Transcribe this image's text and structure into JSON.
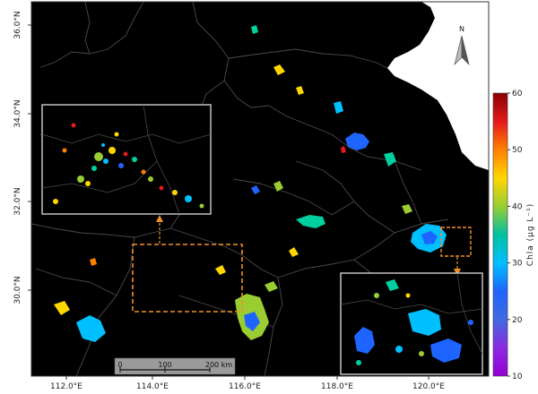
{
  "map": {
    "longitude_labels": [
      "112.0°E",
      "114.0°E",
      "116.0°E",
      "118.0°E",
      "120.0°E"
    ],
    "latitude_labels": [
      "36.0°N",
      "34.0°N",
      "32.0°N",
      "30.0°N"
    ],
    "north_arrow_label": "N",
    "scale_bar": {
      "labels": [
        "0",
        "100",
        "200 km"
      ]
    },
    "colorbar": {
      "title": "Chla (μg L⁻¹)",
      "ticks": [
        "60",
        "50",
        "40",
        "30",
        "20",
        "10"
      ],
      "range": [
        10,
        60
      ],
      "colors": [
        "#8b0000",
        "#e41a1c",
        "#ff7f00",
        "#ffd700",
        "#9acd32",
        "#00c0a0",
        "#00bfff",
        "#1e64ff",
        "#4169e1",
        "#8a2be2",
        "#9400d3"
      ]
    },
    "colors": {
      "background": "#000000",
      "land_border": "#4a4a4a",
      "sea": "#ffffff",
      "inset_border": "#cfcfcf",
      "highlight_box": "#f0902a"
    }
  }
}
